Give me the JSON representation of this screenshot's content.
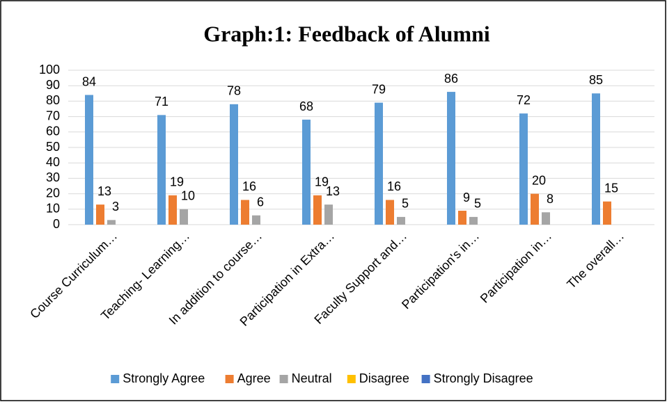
{
  "chart_data": {
    "type": "bar",
    "title": "Graph:1: Feedback of Alumni",
    "categories": [
      "Course Curriculum…",
      "Teaching- Learning…",
      "In addition to course…",
      "Participation in Extra…",
      "Faculty Support and…",
      "Participation's in…",
      "Participation in…",
      "The overall…"
    ],
    "series": [
      {
        "name": "Strongly Agree",
        "color": "#5b9bd5",
        "values": [
          84,
          71,
          78,
          68,
          79,
          86,
          72,
          85
        ]
      },
      {
        "name": "Agree",
        "color": "#ed7d31",
        "values": [
          13,
          19,
          16,
          19,
          16,
          9,
          20,
          15
        ]
      },
      {
        "name": "Neutral",
        "color": "#a5a5a5",
        "values": [
          3,
          10,
          6,
          13,
          5,
          5,
          8,
          0
        ]
      },
      {
        "name": "Disagree",
        "color": "#ffc000",
        "values": [
          0,
          0,
          0,
          0,
          0,
          0,
          0,
          0
        ]
      },
      {
        "name": "Strongly Disagree",
        "color": "#4472c4",
        "values": [
          0,
          0,
          0,
          0,
          0,
          0,
          0,
          0
        ]
      }
    ],
    "ylim": [
      0,
      100
    ],
    "yticks": [
      0,
      10,
      20,
      30,
      40,
      50,
      60,
      70,
      80,
      90,
      100
    ],
    "grid": true,
    "legend": "bottom"
  }
}
